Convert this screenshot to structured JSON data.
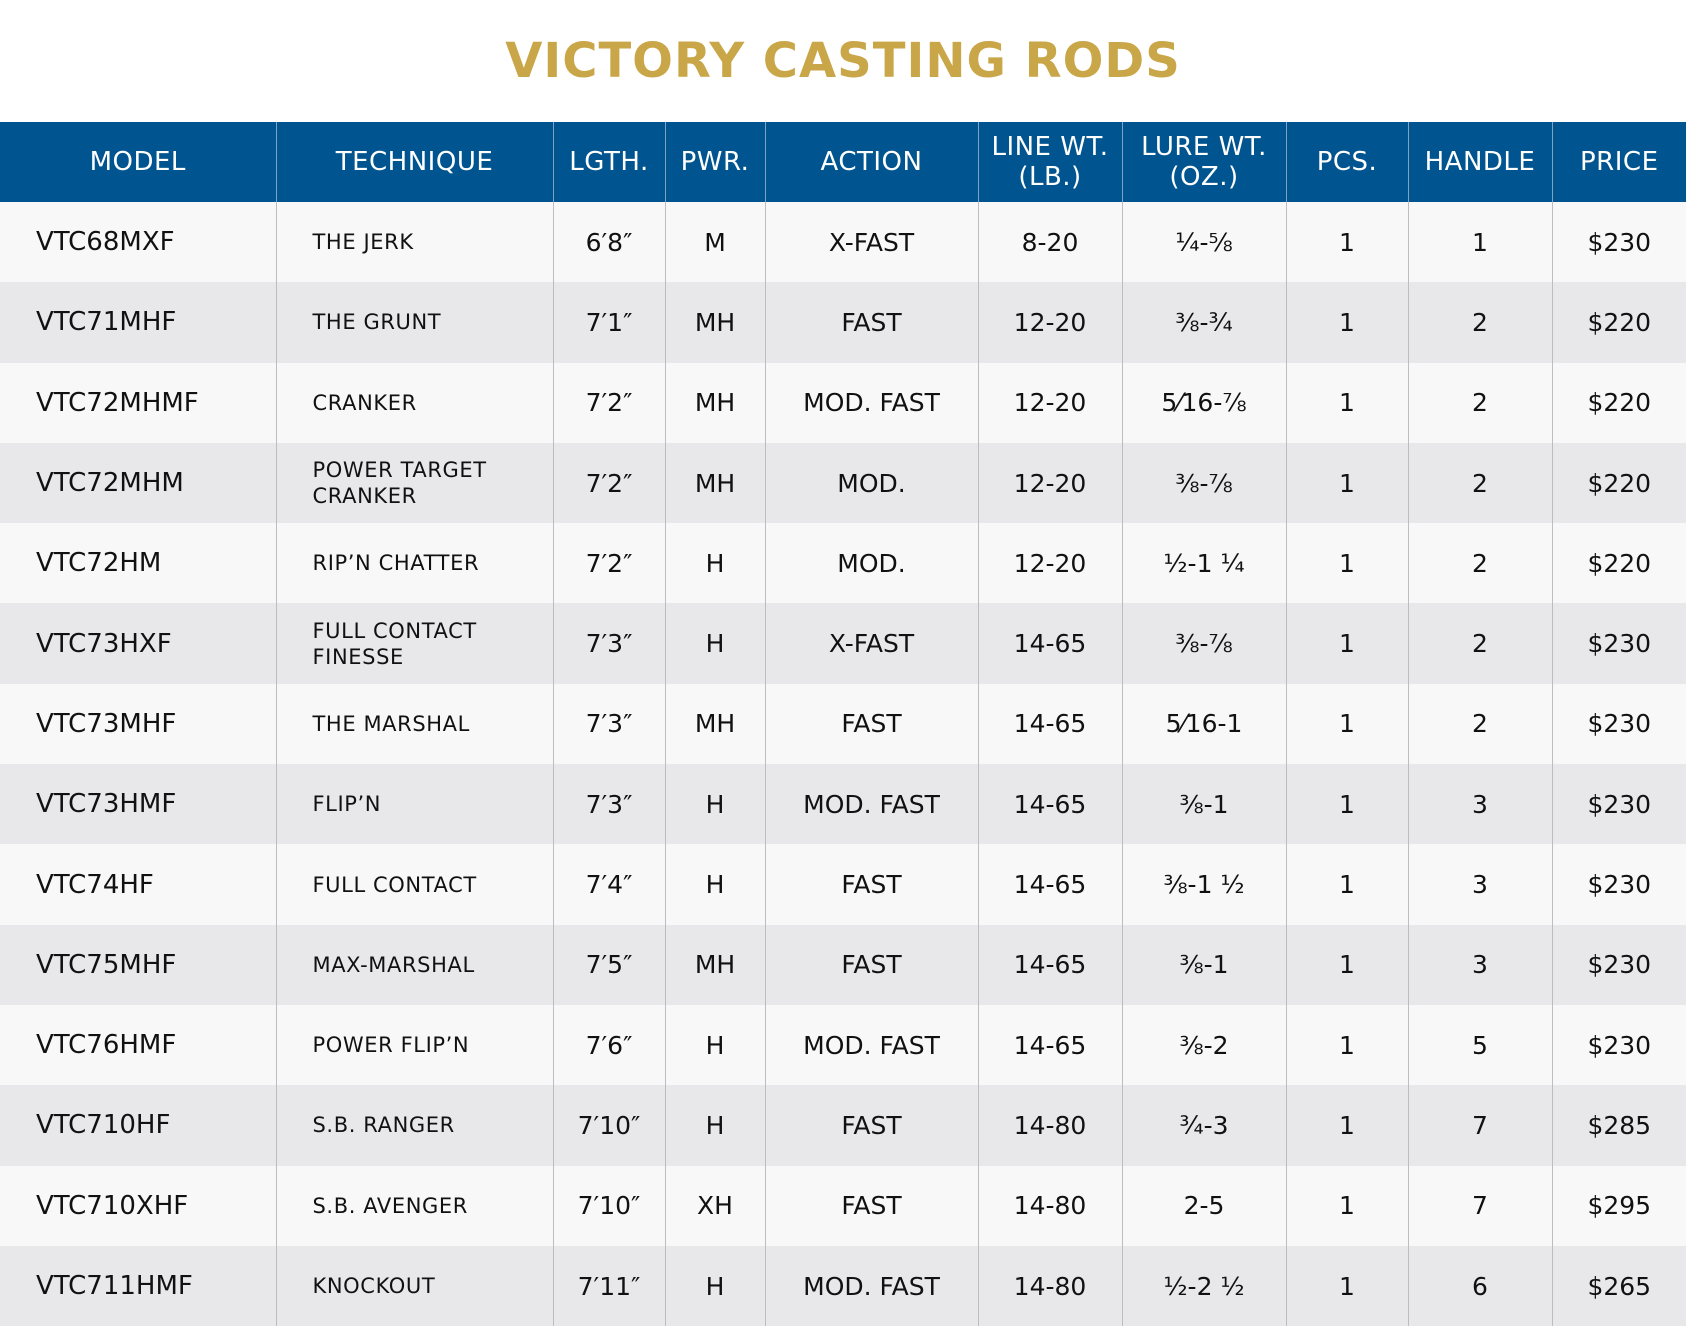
{
  "title": "VICTORY CASTING RODS",
  "colors": {
    "title": "#c9a648",
    "header_bg": "#00548f",
    "row_light": "#f8f8f9",
    "row_dark": "#e8e8ea"
  },
  "headers": {
    "model": "MODEL",
    "technique": "TECHNIQUE",
    "length": "LGTH.",
    "power": "PWR.",
    "action": "ACTION",
    "line_wt": "LINE WT.\n(LB.)",
    "lure_wt": "LURE WT.\n(OZ.)",
    "pieces": "PCS.",
    "handle": "HANDLE",
    "price": "PRICE"
  },
  "rows": [
    {
      "model": "VTC68MXF",
      "technique": "THE JERK",
      "length": "6′8″",
      "power": "M",
      "action": "X-FAST",
      "line_wt": "8-20",
      "lure_wt": "¼-⅝",
      "pieces": "1",
      "handle": "1",
      "price": "$230"
    },
    {
      "model": "VTC71MHF",
      "technique": "THE GRUNT",
      "length": "7′1″",
      "power": "MH",
      "action": "FAST",
      "line_wt": "12-20",
      "lure_wt": "⅜-¾",
      "pieces": "1",
      "handle": "2",
      "price": "$220"
    },
    {
      "model": "VTC72MHMF",
      "technique": "CRANKER",
      "length": "7′2″",
      "power": "MH",
      "action": "MOD. FAST",
      "line_wt": "12-20",
      "lure_wt": "5⁄16-⅞",
      "pieces": "1",
      "handle": "2",
      "price": "$220"
    },
    {
      "model": "VTC72MHM",
      "technique": "POWER TARGET\nCRANKER",
      "length": "7′2″",
      "power": "MH",
      "action": "MOD.",
      "line_wt": "12-20",
      "lure_wt": "⅜-⅞",
      "pieces": "1",
      "handle": "2",
      "price": "$220"
    },
    {
      "model": "VTC72HM",
      "technique": "RIP’N CHATTER",
      "length": "7′2″",
      "power": "H",
      "action": "MOD.",
      "line_wt": "12-20",
      "lure_wt": "½-1 ¼",
      "pieces": "1",
      "handle": "2",
      "price": "$220"
    },
    {
      "model": "VTC73HXF",
      "technique": "FULL CONTACT\nFINESSE",
      "length": "7′3″",
      "power": "H",
      "action": "X-FAST",
      "line_wt": "14-65",
      "lure_wt": "⅜-⅞",
      "pieces": "1",
      "handle": "2",
      "price": "$230"
    },
    {
      "model": "VTC73MHF",
      "technique": "THE MARSHAL",
      "length": "7′3″",
      "power": "MH",
      "action": "FAST",
      "line_wt": "14-65",
      "lure_wt": "5⁄16-1",
      "pieces": "1",
      "handle": "2",
      "price": "$230"
    },
    {
      "model": "VTC73HMF",
      "technique": "FLIP’N",
      "length": "7′3″",
      "power": "H",
      "action": "MOD. FAST",
      "line_wt": "14-65",
      "lure_wt": "⅜-1",
      "pieces": "1",
      "handle": "3",
      "price": "$230"
    },
    {
      "model": "VTC74HF",
      "technique": "FULL CONTACT",
      "length": "7′4″",
      "power": "H",
      "action": "FAST",
      "line_wt": "14-65",
      "lure_wt": "⅜-1 ½",
      "pieces": "1",
      "handle": "3",
      "price": "$230"
    },
    {
      "model": "VTC75MHF",
      "technique": "MAX-MARSHAL",
      "length": "7′5″",
      "power": "MH",
      "action": "FAST",
      "line_wt": "14-65",
      "lure_wt": "⅜-1",
      "pieces": "1",
      "handle": "3",
      "price": "$230"
    },
    {
      "model": "VTC76HMF",
      "technique": "POWER FLIP’N",
      "length": "7′6″",
      "power": "H",
      "action": "MOD. FAST",
      "line_wt": "14-65",
      "lure_wt": "⅜-2",
      "pieces": "1",
      "handle": "5",
      "price": "$230"
    },
    {
      "model": "VTC710HF",
      "technique": "S.B. RANGER",
      "length": "7′10″",
      "power": "H",
      "action": "FAST",
      "line_wt": "14-80",
      "lure_wt": "¾-3",
      "pieces": "1",
      "handle": "7",
      "price": "$285"
    },
    {
      "model": "VTC710XHF",
      "technique": "S.B. AVENGER",
      "length": "7′10″",
      "power": "XH",
      "action": "FAST",
      "line_wt": "14-80",
      "lure_wt": "2-5",
      "pieces": "1",
      "handle": "7",
      "price": "$295"
    },
    {
      "model": "VTC711HMF",
      "technique": "KNOCKOUT",
      "length": "7′11″",
      "power": "H",
      "action": "MOD. FAST",
      "line_wt": "14-80",
      "lure_wt": "½-2 ½",
      "pieces": "1",
      "handle": "6",
      "price": "$265"
    }
  ]
}
